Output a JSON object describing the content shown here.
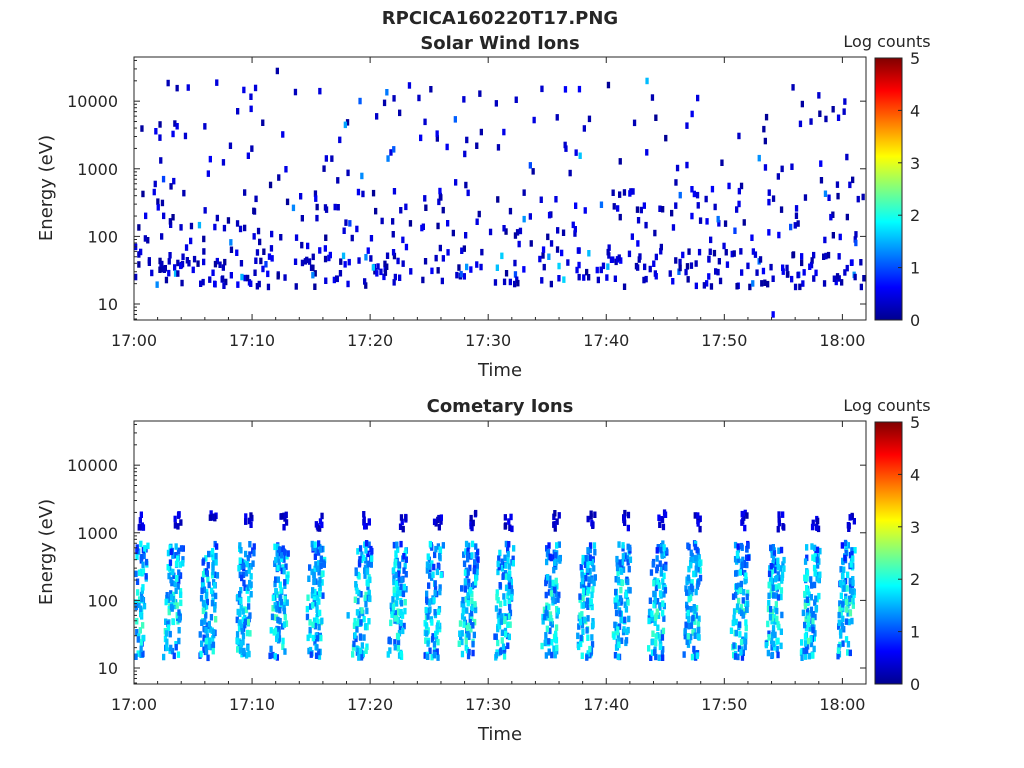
{
  "figure": {
    "main_title": "RPCICA160220T17.PNG"
  },
  "colorbar": {
    "label": "Log counts",
    "ticks": [
      "0",
      "1",
      "2",
      "3",
      "4",
      "5"
    ],
    "range": [
      0,
      5
    ],
    "colormap": "jet"
  },
  "chart_data": [
    {
      "type": "heatmap",
      "title": "Solar Wind Ions",
      "xlabel": "Time",
      "ylabel": "Energy (eV)",
      "x_ticks": [
        "17:00",
        "17:10",
        "17:20",
        "17:30",
        "17:40",
        "17:50",
        "18:00"
      ],
      "x_range": [
        "17:00",
        "18:02"
      ],
      "y_ticks": [
        "10",
        "100",
        "1000",
        "10000"
      ],
      "y_scale": "log",
      "y_range": [
        5.8,
        45000
      ],
      "z_label": "Log counts",
      "z_range": [
        0,
        5
      ],
      "pattern": "sparse scattered counts, mostly log-count 0-1, concentrated 15-300 eV with sporadic points up to ~20000 eV",
      "cells_sample": [
        {
          "time": "17:00",
          "energy_eV": 70,
          "log_counts": 0.5
        },
        {
          "time": "17:00",
          "energy_eV": 25,
          "log_counts": 0.3
        },
        {
          "time": "17:03",
          "energy_eV": 550,
          "log_counts": 0.2
        },
        {
          "time": "17:09",
          "energy_eV": 25,
          "log_counts": 1.5
        },
        {
          "time": "17:12",
          "energy_eV": 28000,
          "log_counts": 0.2
        },
        {
          "time": "17:22",
          "energy_eV": 25,
          "log_counts": 0.4
        },
        {
          "time": "17:25",
          "energy_eV": 15000,
          "log_counts": 0.2
        },
        {
          "time": "17:35",
          "energy_eV": 50,
          "log_counts": 1.4
        },
        {
          "time": "17:54",
          "energy_eV": 7,
          "log_counts": 0.6
        },
        {
          "time": "18:01",
          "energy_eV": 80,
          "log_counts": 1.0
        }
      ]
    },
    {
      "type": "heatmap",
      "title": "Cometary Ions",
      "xlabel": "Time",
      "ylabel": "Energy (eV)",
      "x_ticks": [
        "17:00",
        "17:10",
        "17:20",
        "17:30",
        "17:40",
        "17:50",
        "18:00"
      ],
      "x_range": [
        "17:00",
        "18:02"
      ],
      "y_ticks": [
        "10",
        "100",
        "1000",
        "10000"
      ],
      "y_scale": "log",
      "y_range": [
        5.8,
        45000
      ],
      "z_label": "Log counts",
      "z_range": [
        0,
        5
      ],
      "pattern": "periodic vertical streaks about every 3.2 minutes spanning ~15-700 eV, log counts mostly 0.5-2.2, with weak counts near 1000-2000 eV",
      "streak_times": [
        "17:00",
        "17:03",
        "17:06",
        "17:09",
        "17:12",
        "17:15",
        "17:19",
        "17:22",
        "17:25",
        "17:28",
        "17:31",
        "17:35",
        "17:38",
        "17:41",
        "17:44",
        "17:47",
        "17:51",
        "17:54",
        "17:57",
        "18:00"
      ],
      "cells_sample": [
        {
          "time": "17:03",
          "energy_eV": 200,
          "log_counts": 1.3
        },
        {
          "time": "17:06",
          "energy_eV": 25,
          "log_counts": 2.0
        },
        {
          "time": "17:18",
          "energy_eV": 60,
          "log_counts": 1.5
        },
        {
          "time": "17:28",
          "energy_eV": 25,
          "log_counts": 2.2
        },
        {
          "time": "17:35",
          "energy_eV": 80,
          "log_counts": 2.0
        },
        {
          "time": "17:44",
          "energy_eV": 100,
          "log_counts": 1.6
        },
        {
          "time": "17:57",
          "energy_eV": 25,
          "log_counts": 2.3
        },
        {
          "time": "18:00",
          "energy_eV": 150,
          "log_counts": 1.4
        }
      ]
    }
  ]
}
